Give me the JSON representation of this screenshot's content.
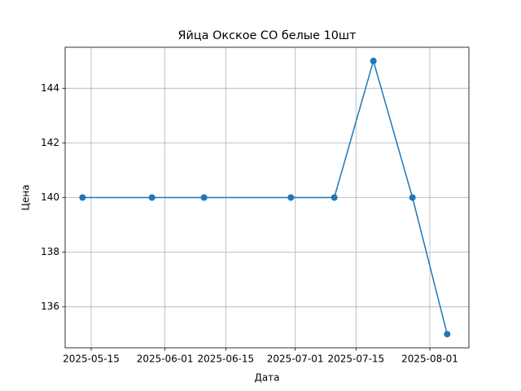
{
  "chart_data": {
    "type": "line",
    "title": "Яйца Окское СО белые 10шт",
    "x_label": "Дата",
    "y_label": "Цена",
    "x": [
      "2025-05-13",
      "2025-05-29",
      "2025-06-10",
      "2025-06-30",
      "2025-07-10",
      "2025-07-19",
      "2025-07-28",
      "2025-08-05"
    ],
    "series": [
      {
        "name": "Цена",
        "color": "#1f77b4",
        "values": [
          140,
          140,
          140,
          140,
          140,
          145,
          140,
          135
        ]
      }
    ],
    "xlim": [
      "2025-05-09",
      "2025-08-10"
    ],
    "xticks": [
      "2025-05-15",
      "2025-06-01",
      "2025-06-15",
      "2025-07-01",
      "2025-07-15",
      "2025-08-01"
    ],
    "ylim": [
      134.5,
      145.5
    ],
    "yticks": [
      136,
      138,
      140,
      142,
      144
    ],
    "grid": true
  }
}
